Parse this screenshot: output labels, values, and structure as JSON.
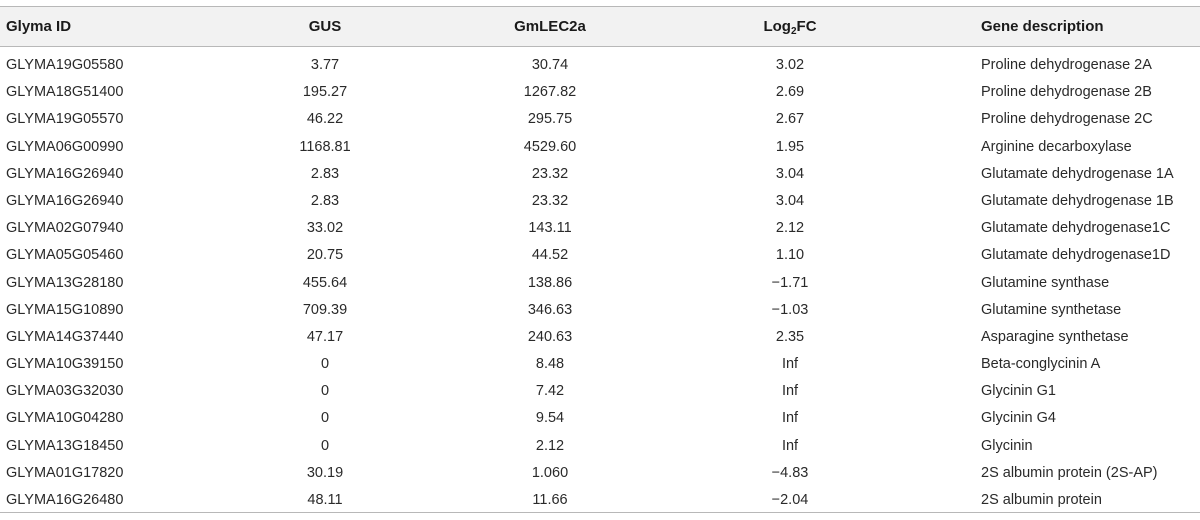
{
  "table": {
    "headers": {
      "id": "Glyma ID",
      "gus": "GUS",
      "lec": "GmLEC2a",
      "fc_main": "Log",
      "fc_sub": "2",
      "fc_tail": "FC",
      "desc": "Gene description"
    },
    "rows": [
      {
        "id": "GLYMA19G05580",
        "gus": "3.77",
        "lec": "30.74",
        "fc": "3.02",
        "desc": "Proline dehydrogenase 2A"
      },
      {
        "id": "GLYMA18G51400",
        "gus": "195.27",
        "lec": "1267.82",
        "fc": "2.69",
        "desc": "Proline dehydrogenase 2B"
      },
      {
        "id": "GLYMA19G05570",
        "gus": "46.22",
        "lec": "295.75",
        "fc": "2.67",
        "desc": "Proline dehydrogenase 2C"
      },
      {
        "id": "GLYMA06G00990",
        "gus": "1168.81",
        "lec": "4529.60",
        "fc": "1.95",
        "desc": "Arginine decarboxylase"
      },
      {
        "id": "GLYMA16G26940",
        "gus": "2.83",
        "lec": "23.32",
        "fc": "3.04",
        "desc": "Glutamate dehydrogenase 1A"
      },
      {
        "id": "GLYMA16G26940",
        "gus": "2.83",
        "lec": "23.32",
        "fc": "3.04",
        "desc": "Glutamate dehydrogenase 1B"
      },
      {
        "id": "GLYMA02G07940",
        "gus": "33.02",
        "lec": "143.11",
        "fc": "2.12",
        "desc": "Glutamate dehydrogenase1C"
      },
      {
        "id": "GLYMA05G05460",
        "gus": "20.75",
        "lec": "44.52",
        "fc": "1.10",
        "desc": "Glutamate dehydrogenase1D"
      },
      {
        "id": "GLYMA13G28180",
        "gus": "455.64",
        "lec": "138.86",
        "fc": "−1.71",
        "desc": "Glutamine synthase"
      },
      {
        "id": "GLYMA15G10890",
        "gus": "709.39",
        "lec": "346.63",
        "fc": "−1.03",
        "desc": "Glutamine synthetase"
      },
      {
        "id": "GLYMA14G37440",
        "gus": "47.17",
        "lec": "240.63",
        "fc": "2.35",
        "desc": "Asparagine synthetase"
      },
      {
        "id": "GLYMA10G39150",
        "gus": "0",
        "lec": "8.48",
        "fc": "Inf",
        "desc": "Beta-conglycinin A"
      },
      {
        "id": "GLYMA03G32030",
        "gus": "0",
        "lec": "7.42",
        "fc": "Inf",
        "desc": "Glycinin G1"
      },
      {
        "id": "GLYMA10G04280",
        "gus": "0",
        "lec": "9.54",
        "fc": "Inf",
        "desc": "Glycinin G4"
      },
      {
        "id": "GLYMA13G18450",
        "gus": "0",
        "lec": "2.12",
        "fc": "Inf",
        "desc": "Glycinin"
      },
      {
        "id": "GLYMA01G17820",
        "gus": "30.19",
        "lec": "1.060",
        "fc": "−4.83",
        "desc": "2S albumin protein (2S-AP)"
      },
      {
        "id": "GLYMA16G26480",
        "gus": "48.11",
        "lec": "11.66",
        "fc": "−2.04",
        "desc": "2S albumin protein"
      }
    ]
  }
}
